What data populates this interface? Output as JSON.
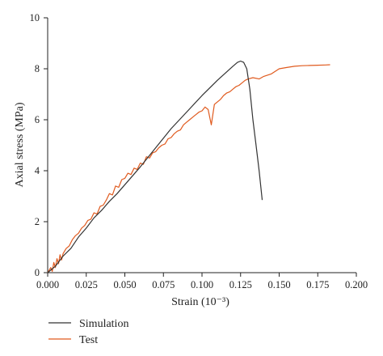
{
  "chart_data": {
    "type": "line",
    "title": "",
    "xlabel": "Strain (10⁻³)",
    "ylabel": "Axial stress (MPa)",
    "xlim": [
      0,
      0.2
    ],
    "ylim": [
      0,
      10
    ],
    "x_ticks": [
      "0.000",
      "0.025",
      "0.050",
      "0.075",
      "0.100",
      "0.125",
      "0.150",
      "0.175",
      "0.200"
    ],
    "y_ticks": [
      "0",
      "2",
      "4",
      "6",
      "8",
      "10"
    ],
    "grid": false,
    "legend_position": "bottom-left",
    "series": [
      {
        "name": "Simulation",
        "color": "#333333",
        "x": [
          0.0,
          0.005,
          0.01,
          0.015,
          0.02,
          0.025,
          0.03,
          0.035,
          0.04,
          0.045,
          0.05,
          0.06,
          0.07,
          0.08,
          0.09,
          0.1,
          0.11,
          0.12,
          0.123,
          0.125,
          0.127,
          0.129,
          0.131,
          0.133,
          0.135,
          0.137,
          0.139
        ],
        "y": [
          0.0,
          0.25,
          0.65,
          0.95,
          1.4,
          1.75,
          2.15,
          2.45,
          2.8,
          3.1,
          3.45,
          4.15,
          4.9,
          5.65,
          6.3,
          6.95,
          7.55,
          8.1,
          8.25,
          8.3,
          8.25,
          8.0,
          7.2,
          6.0,
          5.0,
          4.0,
          2.85
        ]
      },
      {
        "name": "Test",
        "color": "#e05a1e",
        "x": [
          0.0,
          0.002,
          0.003,
          0.004,
          0.005,
          0.006,
          0.007,
          0.008,
          0.009,
          0.01,
          0.012,
          0.014,
          0.016,
          0.018,
          0.02,
          0.022,
          0.024,
          0.026,
          0.028,
          0.03,
          0.032,
          0.034,
          0.036,
          0.038,
          0.04,
          0.042,
          0.044,
          0.046,
          0.048,
          0.05,
          0.052,
          0.054,
          0.056,
          0.058,
          0.06,
          0.062,
          0.064,
          0.066,
          0.068,
          0.07,
          0.072,
          0.074,
          0.076,
          0.078,
          0.08,
          0.082,
          0.084,
          0.086,
          0.088,
          0.09,
          0.092,
          0.094,
          0.096,
          0.098,
          0.1,
          0.102,
          0.104,
          0.106,
          0.108,
          0.11,
          0.112,
          0.114,
          0.116,
          0.118,
          0.12,
          0.122,
          0.124,
          0.126,
          0.128,
          0.13,
          0.133,
          0.137,
          0.14,
          0.145,
          0.15,
          0.155,
          0.16,
          0.165,
          0.17,
          0.175,
          0.18,
          0.183
        ],
        "y": [
          0.0,
          0.2,
          0.05,
          0.4,
          0.2,
          0.55,
          0.35,
          0.7,
          0.5,
          0.75,
          0.95,
          1.05,
          1.3,
          1.45,
          1.55,
          1.75,
          1.85,
          2.05,
          2.1,
          2.35,
          2.3,
          2.6,
          2.65,
          2.85,
          3.1,
          3.05,
          3.4,
          3.35,
          3.65,
          3.7,
          3.9,
          3.85,
          4.1,
          4.05,
          4.3,
          4.25,
          4.55,
          4.5,
          4.7,
          4.75,
          4.9,
          5.0,
          5.05,
          5.25,
          5.3,
          5.45,
          5.55,
          5.6,
          5.8,
          5.9,
          6.0,
          6.1,
          6.2,
          6.3,
          6.35,
          6.5,
          6.4,
          5.8,
          6.6,
          6.7,
          6.8,
          6.95,
          7.05,
          7.1,
          7.2,
          7.3,
          7.35,
          7.45,
          7.55,
          7.6,
          7.65,
          7.6,
          7.7,
          7.8,
          8.0,
          8.05,
          8.1,
          8.12,
          8.13,
          8.14,
          8.15,
          8.16
        ]
      }
    ]
  }
}
